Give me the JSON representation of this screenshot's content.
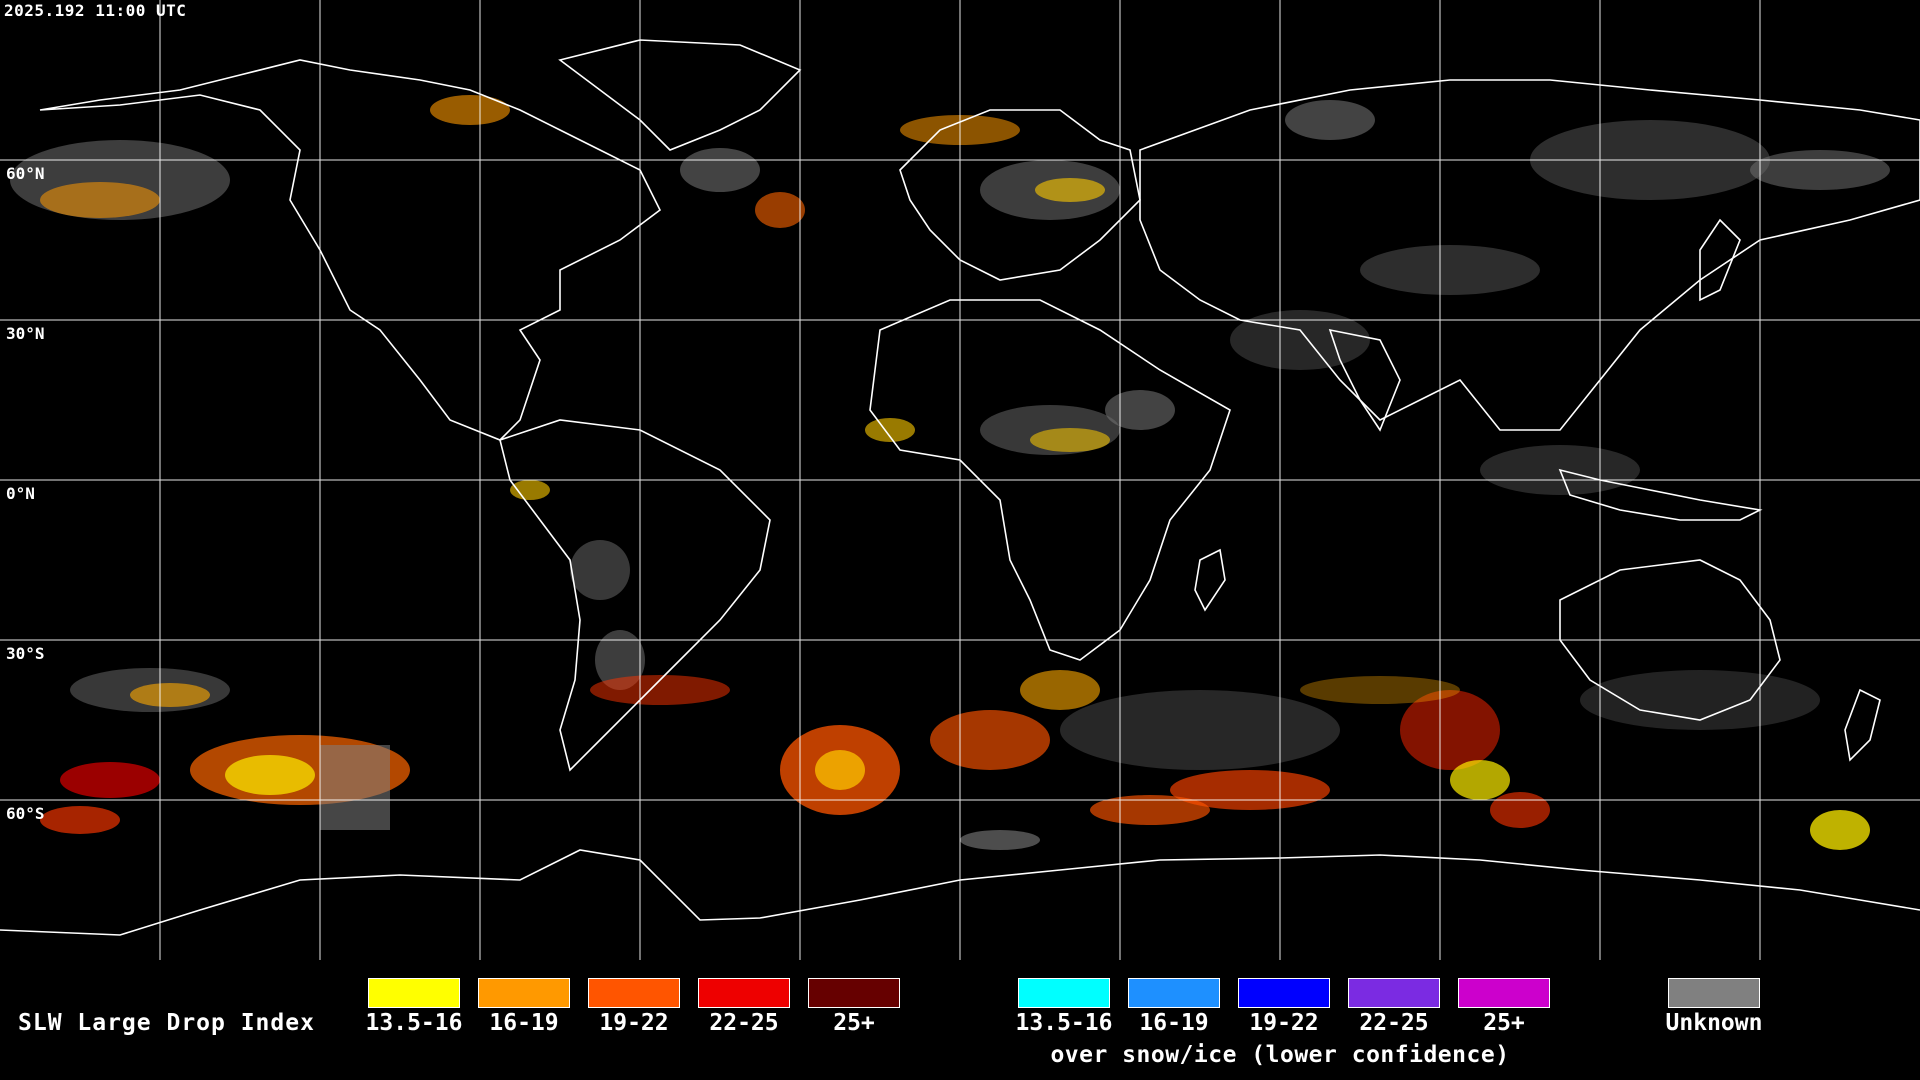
{
  "timestamp": "2025.192 11:00 UTC",
  "lat_labels": [
    "60°N",
    "30°N",
    "0°N",
    "30°S",
    "60°S"
  ],
  "legend": {
    "title": "SLW Large Drop Index",
    "normal": [
      {
        "label": "13.5-16",
        "color": "#ffff00"
      },
      {
        "label": "16-19",
        "color": "#ff9900"
      },
      {
        "label": "19-22",
        "color": "#ff5500"
      },
      {
        "label": "22-25",
        "color": "#ee0000"
      },
      {
        "label": "25+",
        "color": "#660000"
      }
    ],
    "snow_ice": [
      {
        "label": "13.5-16",
        "color": "#00ffff"
      },
      {
        "label": "16-19",
        "color": "#1e90ff"
      },
      {
        "label": "19-22",
        "color": "#0000ff"
      },
      {
        "label": "22-25",
        "color": "#7b2be2"
      },
      {
        "label": "25+",
        "color": "#cc00cc"
      }
    ],
    "snow_note": "over snow/ice (lower confidence)",
    "unknown": {
      "label": "Unknown",
      "color": "#808080"
    }
  }
}
